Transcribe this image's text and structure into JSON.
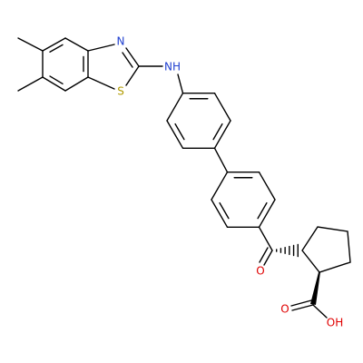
{
  "labels": {
    "thiazole_n": "N",
    "amine": "NH",
    "thiazole_s": "S",
    "ketone_o": "O",
    "acid_o": "O",
    "acid_oh": "OH"
  }
}
